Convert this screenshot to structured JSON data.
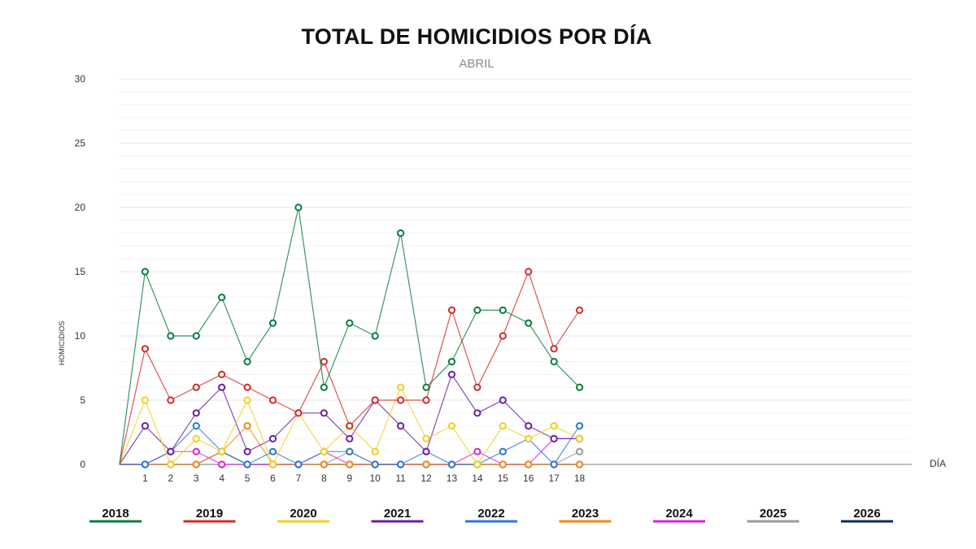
{
  "chart_data": {
    "type": "line",
    "title": "TOTAL DE HOMICIDIOS POR DÍA",
    "subtitle": "ABRIL",
    "xlabel": "DÍA",
    "ylabel": "HOMICIDIOS",
    "x": [
      1,
      2,
      3,
      4,
      5,
      6,
      7,
      8,
      9,
      10,
      11,
      12,
      13,
      14,
      15,
      16,
      17,
      18
    ],
    "xlim": [
      0,
      31
    ],
    "ylim": [
      0,
      30
    ],
    "y_ticks": [
      0,
      5,
      10,
      15,
      20,
      25,
      30
    ],
    "grid": true,
    "legend_position": "bottom",
    "series": [
      {
        "name": "2018",
        "color": "#0a7c3e",
        "values": [
          15,
          10,
          10,
          13,
          8,
          11,
          20,
          6,
          11,
          10,
          18,
          6,
          8,
          12,
          12,
          11,
          8,
          6
        ]
      },
      {
        "name": "2019",
        "color": "#d42a2a",
        "values": [
          9,
          5,
          6,
          7,
          6,
          5,
          4,
          8,
          3,
          5,
          5,
          5,
          12,
          6,
          10,
          15,
          9,
          12
        ]
      },
      {
        "name": "2020",
        "color": "#f0d020",
        "values": [
          5,
          0,
          2,
          1,
          5,
          0,
          4,
          1,
          3,
          1,
          6,
          2,
          3,
          0,
          3,
          2,
          3,
          2
        ]
      },
      {
        "name": "2021",
        "color": "#6a1fa8",
        "values": [
          3,
          1,
          4,
          6,
          1,
          2,
          4,
          4,
          2,
          5,
          3,
          1,
          7,
          4,
          5,
          3,
          2,
          2
        ]
      },
      {
        "name": "2022",
        "color": "#2a78d4",
        "values": [
          0,
          1,
          3,
          1,
          0,
          1,
          0,
          1,
          1,
          0,
          0,
          1,
          0,
          0,
          1,
          2,
          0,
          3
        ]
      },
      {
        "name": "2023",
        "color": "#ee8a1a",
        "values": [
          0,
          0,
          0,
          1,
          3,
          0,
          0,
          0,
          0,
          0,
          0,
          0,
          0,
          0,
          0,
          0,
          0,
          0
        ]
      },
      {
        "name": "2024",
        "color": "#e020d8",
        "values": [
          0,
          1,
          1,
          0,
          0,
          0,
          0,
          1,
          0,
          0,
          0,
          0,
          0,
          1,
          0,
          0,
          2,
          2
        ]
      },
      {
        "name": "2025",
        "color": "#9a9a9a",
        "values": [
          0,
          0,
          0,
          0,
          0,
          0,
          0,
          0,
          1,
          0,
          0,
          0,
          0,
          0,
          0,
          0,
          0,
          1
        ]
      },
      {
        "name": "2026",
        "color": "#0c2a5e",
        "values": [
          0,
          0,
          0,
          1,
          0,
          0,
          0,
          0,
          0,
          0,
          0,
          0,
          0,
          0,
          0,
          0,
          0,
          0
        ]
      }
    ]
  }
}
